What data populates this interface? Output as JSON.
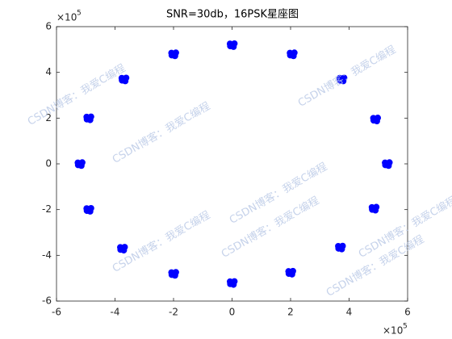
{
  "chart_data": {
    "type": "scatter",
    "title": "SNR=30db，16PSK星座图",
    "color": "#0000ff",
    "x": [
      5.38,
      5.23,
      5.35,
      5.24,
      4.98,
      4.83,
      4.95,
      4.84,
      3.83,
      3.68,
      3.8,
      3.69,
      2.13,
      1.98,
      2.1,
      1.99,
      0.08,
      -0.07,
      0.05,
      -0.06,
      -1.92,
      -2.07,
      -1.95,
      -2.06,
      -3.62,
      -3.77,
      -3.65,
      -3.76,
      -4.82,
      -4.97,
      -4.85,
      -4.96,
      -5.12,
      -5.27,
      -5.15,
      -5.26,
      -4.82,
      -4.97,
      -4.85,
      -4.96,
      -3.67,
      -3.82,
      -3.7,
      -3.81,
      -1.92,
      -2.07,
      -1.95,
      -2.06,
      0.08,
      -0.07,
      0.05,
      -0.06,
      2.08,
      1.93,
      2.05,
      1.94,
      3.78,
      3.63,
      3.75,
      3.64,
      4.93,
      4.78,
      4.9,
      4.79
    ],
    "values": [
      0.06,
      0.05,
      -0.08,
      -0.05,
      2.01,
      2.0,
      1.87,
      1.9,
      3.76,
      3.75,
      3.62,
      3.65,
      4.86,
      4.85,
      4.72,
      4.75,
      5.26,
      5.25,
      5.12,
      5.15,
      4.86,
      4.85,
      4.72,
      4.75,
      3.76,
      3.75,
      3.62,
      3.65,
      2.06,
      2.05,
      1.92,
      1.95,
      0.06,
      0.05,
      -0.08,
      -0.05,
      -1.94,
      -1.95,
      -2.08,
      -2.05,
      -3.64,
      -3.65,
      -3.78,
      -3.75,
      -4.74,
      -4.75,
      -4.88,
      -4.85,
      -5.14,
      -5.15,
      -5.28,
      -5.25,
      -4.69,
      -4.7,
      -4.83,
      -4.8,
      -3.59,
      -3.6,
      -3.73,
      -3.7,
      -1.89,
      -1.9,
      -2.03,
      -2.0
    ],
    "xlim": [
      -6,
      6
    ],
    "ylim": [
      -6,
      6
    ],
    "xticks": [
      -6,
      -4,
      -2,
      0,
      2,
      4,
      6
    ],
    "yticks": [
      -6,
      -4,
      -2,
      0,
      2,
      4,
      6
    ],
    "x_exponent": {
      "base": "×10",
      "power": "5"
    },
    "y_exponent": {
      "base": "×10",
      "power": "5"
    },
    "watermarks": [
      "CSDN博客：我爱C编程",
      "CSDN博客：我爱C编程",
      "CSDN博客：我爱C编程",
      "CSDN博客：我爱C编程",
      "CSDN博客：我爱C编程",
      "CSDN博客：我爱C编程",
      "CSDN博客：我爱C编程",
      "CSDN博客：我爱C编程"
    ]
  }
}
